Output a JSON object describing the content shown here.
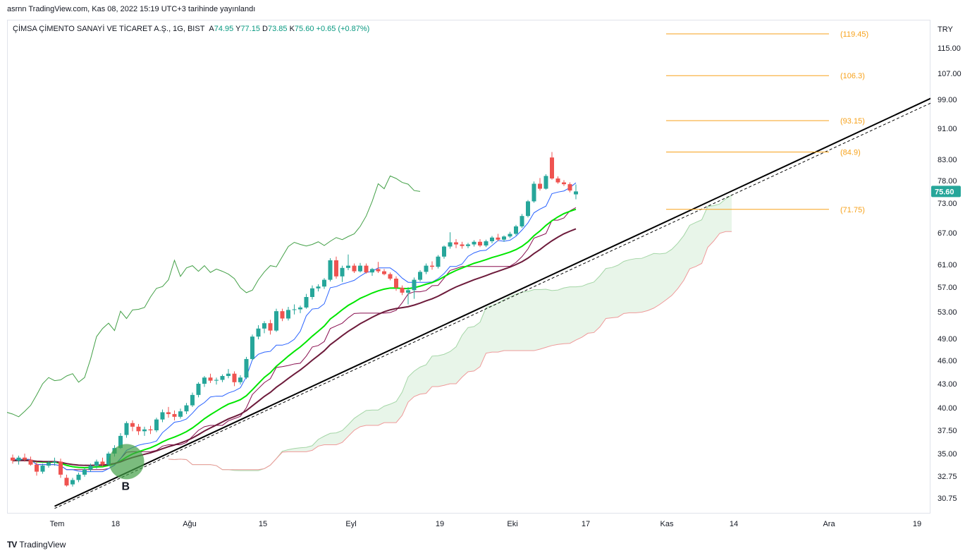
{
  "caption": "asrnn TradingView.com, Kas 08, 2022 15:19 UTC+3 tarihinde yayınlandı",
  "legend": {
    "symbol": "ÇİMSA ÇİMENTO SANAYİ VE TİCARET A.Ş., 1G, BIST",
    "open_label": "A",
    "open": "74.95",
    "high_label": "Y",
    "high": "77.15",
    "low_label": "D",
    "low": "73.85",
    "close_label": "K",
    "close": "75.60",
    "change": "+0.65 (+0.87%)"
  },
  "footer": {
    "logo_text": "TradingView",
    "logo_mark": "TV"
  },
  "colors": {
    "up": "#26a69a",
    "down": "#ef5350",
    "tenkan": "#2962ff",
    "kijun": "#880e4f",
    "chikou": "#43a047",
    "ema": "#00e600",
    "fib": "#f7a21b",
    "cloud_up": "#e8f5e9",
    "cloud_down": "#fde8e8"
  },
  "chart_data": {
    "type": "candlestick",
    "currency": "TRY",
    "y_ticks": [
      "115.00",
      "107.00",
      "99.00",
      "91.00",
      "83.00",
      "78.00",
      "73.00",
      "67.00",
      "61.00",
      "57.00",
      "53.00",
      "49.00",
      "46.00",
      "43.00",
      "40.00",
      "37.50",
      "35.00",
      "32.75",
      "30.75"
    ],
    "x_ticks": [
      "Tem",
      "18",
      "Ağu",
      "15",
      "Eyl",
      "19",
      "Eki",
      "17",
      "Kas",
      "14",
      "Ara",
      "19"
    ],
    "last_price_label": "75.60",
    "fib_levels": [
      {
        "label": "(119.45)",
        "value": 119.45
      },
      {
        "label": "(106.3)",
        "value": 106.3
      },
      {
        "label": "(93.15)",
        "value": 93.15
      },
      {
        "label": "(84.9)",
        "value": 84.9
      },
      {
        "label": "(71.75)",
        "value": 71.75
      }
    ],
    "annotation": {
      "label": "B",
      "value": 34.2
    },
    "candles": [
      [
        34.6,
        34.9,
        34.0,
        34.3
      ],
      [
        34.3,
        34.8,
        33.9,
        34.6
      ],
      [
        34.6,
        35.0,
        34.2,
        34.4
      ],
      [
        34.4,
        34.7,
        33.8,
        33.9
      ],
      [
        33.9,
        34.2,
        32.8,
        33.2
      ],
      [
        33.2,
        34.0,
        33.0,
        33.8
      ],
      [
        33.8,
        34.3,
        33.6,
        34.1
      ],
      [
        34.1,
        34.6,
        33.8,
        34.2
      ],
      [
        34.2,
        34.5,
        32.6,
        32.9
      ],
      [
        32.6,
        32.9,
        31.8,
        31.9
      ],
      [
        32.0,
        32.6,
        31.8,
        32.4
      ],
      [
        32.4,
        33.1,
        32.2,
        32.9
      ],
      [
        32.9,
        33.6,
        32.7,
        33.4
      ],
      [
        33.4,
        34.0,
        33.2,
        33.8
      ],
      [
        33.8,
        34.4,
        33.5,
        34.2
      ],
      [
        34.2,
        34.6,
        33.7,
        33.9
      ],
      [
        33.9,
        35.2,
        33.8,
        35.0
      ],
      [
        35.0,
        35.9,
        34.7,
        35.6
      ],
      [
        35.6,
        37.2,
        35.5,
        36.9
      ],
      [
        37.0,
        38.5,
        36.7,
        38.3
      ],
      [
        38.3,
        38.6,
        37.4,
        37.9
      ],
      [
        37.9,
        38.2,
        37.0,
        37.4
      ],
      [
        37.4,
        37.9,
        36.9,
        37.6
      ],
      [
        37.6,
        38.0,
        37.1,
        37.5
      ],
      [
        37.5,
        38.9,
        37.3,
        38.7
      ],
      [
        38.7,
        39.8,
        38.4,
        39.5
      ],
      [
        39.5,
        40.1,
        38.9,
        39.3
      ],
      [
        39.3,
        39.7,
        38.6,
        39.0
      ],
      [
        39.0,
        39.9,
        38.8,
        39.6
      ],
      [
        39.6,
        40.6,
        39.3,
        40.3
      ],
      [
        40.3,
        41.9,
        40.1,
        41.6
      ],
      [
        41.6,
        43.2,
        41.3,
        43.0
      ],
      [
        43.0,
        44.0,
        42.6,
        43.8
      ],
      [
        43.8,
        44.3,
        43.1,
        43.4
      ],
      [
        43.4,
        43.8,
        42.9,
        43.5
      ],
      [
        43.5,
        44.2,
        43.2,
        44.0
      ],
      [
        44.0,
        44.9,
        43.7,
        44.3
      ],
      [
        44.3,
        44.6,
        42.7,
        43.2
      ],
      [
        43.2,
        44.1,
        42.9,
        43.8
      ],
      [
        43.8,
        46.5,
        43.6,
        46.2
      ],
      [
        46.2,
        49.6,
        46.0,
        49.3
      ],
      [
        49.3,
        51.0,
        48.9,
        50.5
      ],
      [
        50.5,
        51.6,
        49.8,
        51.3
      ],
      [
        51.3,
        51.8,
        49.6,
        50.2
      ],
      [
        50.2,
        53.5,
        50.0,
        53.1
      ],
      [
        53.1,
        53.5,
        51.6,
        52.0
      ],
      [
        52.0,
        53.8,
        51.7,
        53.3
      ],
      [
        53.3,
        54.2,
        52.6,
        53.4
      ],
      [
        53.4,
        54.0,
        52.8,
        53.7
      ],
      [
        53.7,
        55.9,
        53.5,
        55.4
      ],
      [
        55.4,
        57.3,
        55.0,
        56.8
      ],
      [
        56.8,
        57.5,
        56.3,
        57.1
      ],
      [
        57.1,
        58.6,
        56.7,
        58.3
      ],
      [
        58.3,
        62.2,
        58.0,
        61.8
      ],
      [
        61.8,
        62.5,
        58.5,
        58.9
      ],
      [
        58.9,
        60.8,
        57.9,
        60.4
      ],
      [
        60.4,
        62.9,
        60.0,
        60.8
      ],
      [
        60.8,
        61.2,
        59.5,
        59.8
      ],
      [
        59.8,
        61.3,
        59.6,
        60.8
      ],
      [
        60.8,
        61.2,
        59.4,
        59.6
      ],
      [
        59.6,
        60.4,
        59.0,
        60.2
      ],
      [
        60.2,
        61.5,
        59.5,
        59.8
      ],
      [
        59.8,
        60.2,
        59.1,
        59.3
      ],
      [
        59.3,
        59.6,
        58.2,
        58.5
      ],
      [
        58.5,
        58.9,
        56.4,
        56.9
      ],
      [
        56.9,
        57.3,
        55.7,
        56.1
      ],
      [
        56.1,
        57.0,
        54.2,
        56.5
      ],
      [
        56.5,
        58.7,
        55.1,
        58.3
      ],
      [
        58.3,
        60.0,
        58.0,
        59.7
      ],
      [
        59.7,
        61.2,
        59.3,
        60.8
      ],
      [
        60.8,
        61.6,
        60.1,
        60.6
      ],
      [
        60.6,
        62.8,
        60.3,
        62.5
      ],
      [
        62.5,
        64.6,
        62.1,
        64.4
      ],
      [
        64.4,
        67.1,
        64.0,
        65.2
      ],
      [
        65.2,
        65.8,
        64.1,
        64.8
      ],
      [
        64.8,
        65.3,
        64.0,
        64.5
      ],
      [
        64.5,
        65.1,
        64.1,
        64.8
      ],
      [
        64.8,
        65.6,
        64.4,
        65.3
      ],
      [
        65.3,
        65.8,
        64.3,
        64.6
      ],
      [
        64.6,
        65.7,
        64.3,
        65.4
      ],
      [
        65.4,
        66.4,
        65.0,
        66.1
      ],
      [
        66.1,
        66.8,
        65.4,
        65.7
      ],
      [
        65.7,
        66.5,
        65.3,
        66.3
      ],
      [
        66.3,
        67.2,
        66.0,
        66.8
      ],
      [
        66.8,
        68.6,
        66.5,
        68.3
      ],
      [
        68.3,
        70.8,
        68.0,
        70.4
      ],
      [
        70.4,
        73.7,
        70.1,
        73.4
      ],
      [
        73.4,
        77.8,
        73.1,
        77.3
      ],
      [
        77.3,
        78.6,
        75.8,
        76.2
      ],
      [
        76.2,
        79.5,
        76.0,
        79.1
      ],
      [
        83.5,
        84.9,
        78.2,
        78.5
      ],
      [
        78.5,
        79.0,
        77.3,
        77.6
      ],
      [
        77.6,
        78.1,
        76.8,
        77.2
      ],
      [
        77.2,
        77.6,
        75.4,
        75.8
      ],
      [
        74.95,
        77.15,
        73.85,
        75.6
      ]
    ]
  }
}
